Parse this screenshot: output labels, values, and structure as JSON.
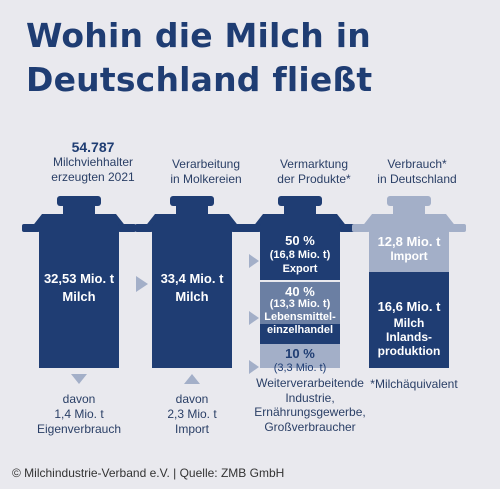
{
  "title": "Wohin die Milch in Deutschland fließt",
  "columns": [
    {
      "head_bold": "54.787",
      "head_text": "Milchviehhalter\nerzeugten 2021",
      "can_value": "32,53 Mio. t\nMilch",
      "below": "davon\n1,4 Mio. t\nEigenverbrauch"
    },
    {
      "head_text": "Verarbeitung\nin Molkereien",
      "can_value": "33,4 Mio. t\nMilch",
      "below": "davon\n2,3 Mio. t\nImport"
    },
    {
      "head_text": "Vermarktung\nder Produkte*",
      "segments": [
        {
          "pct": "50 %",
          "amount": "(16,8 Mio. t)",
          "name": "Export"
        },
        {
          "pct": "40 %",
          "amount": "(13,3 Mio. t)",
          "name": "Lebensmittel-\neinzelhandel"
        },
        {
          "pct": "10 %",
          "amount": "(3,3 Mio. t)",
          "name": "Weiterverarbeitende\nIndustrie,\nErnährungsgewerbe,\nGroßverbraucher"
        }
      ]
    },
    {
      "head_text": "Verbrauch*\nin Deutschland",
      "segments": [
        {
          "value": "12,8 Mio. t",
          "name": "Import"
        },
        {
          "value": "16,6 Mio. t",
          "name": "Milch\nInlands-\nproduktion"
        }
      ],
      "below": "*Milchäquivalent"
    }
  ],
  "footer": "© Milchindustrie-Verband e.V. | Quelle: ZMB GmbH",
  "colors": {
    "dark": "#1f3d73",
    "mid": "#6b7fa3",
    "light": "#a3afc8",
    "bg": "#e9e9ee"
  }
}
